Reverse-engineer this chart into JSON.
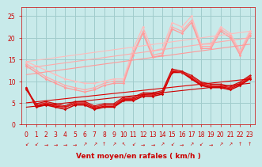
{
  "bg_color": "#c8eaea",
  "grid_color": "#a0cccc",
  "xlabel": "Vent moyen/en rafales ( km/h )",
  "xlabel_color": "#cc0000",
  "xlabel_fontsize": 6.5,
  "tick_color": "#cc0000",
  "tick_fontsize": 5.5,
  "ylim": [
    0,
    27
  ],
  "xlim": [
    -0.5,
    23.5
  ],
  "yticks": [
    0,
    5,
    10,
    15,
    20,
    25
  ],
  "xticks": [
    0,
    1,
    2,
    3,
    4,
    5,
    6,
    7,
    8,
    9,
    10,
    11,
    12,
    13,
    14,
    15,
    16,
    17,
    18,
    19,
    20,
    21,
    22,
    23
  ],
  "lines": [
    {
      "comment": "light pink upper line 1 - nearly straight diagonal",
      "x": [
        0,
        1,
        2,
        3,
        4,
        5,
        6,
        7,
        8,
        9,
        10,
        11,
        12,
        13,
        14,
        15,
        16,
        17,
        18,
        19,
        20,
        21,
        22,
        23
      ],
      "y": [
        14.5,
        13.5,
        12.5,
        11.5,
        10.5,
        10.0,
        9.5,
        9.5,
        10.0,
        10.5,
        10.5,
        17.5,
        22.5,
        17.0,
        17.5,
        23.5,
        22.5,
        25.0,
        18.5,
        18.5,
        22.5,
        21.0,
        17.0,
        21.5
      ],
      "color": "#ffbbbb",
      "lw": 0.9,
      "marker": "D",
      "ms": 1.8,
      "alpha": 1.0
    },
    {
      "comment": "light pink upper line 2",
      "x": [
        0,
        1,
        2,
        3,
        4,
        5,
        6,
        7,
        8,
        9,
        10,
        11,
        12,
        13,
        14,
        15,
        16,
        17,
        18,
        19,
        20,
        21,
        22,
        23
      ],
      "y": [
        14.0,
        12.5,
        11.0,
        10.0,
        9.0,
        8.5,
        8.0,
        8.5,
        9.5,
        10.0,
        10.0,
        16.5,
        21.5,
        16.0,
        16.5,
        22.5,
        21.5,
        24.0,
        18.0,
        18.0,
        22.0,
        20.5,
        16.5,
        21.0
      ],
      "color": "#ffaaaa",
      "lw": 0.9,
      "marker": "D",
      "ms": 1.8,
      "alpha": 1.0
    },
    {
      "comment": "light pink upper line 3 - more diagonal",
      "x": [
        0,
        1,
        2,
        3,
        4,
        5,
        6,
        7,
        8,
        9,
        10,
        11,
        12,
        13,
        14,
        15,
        16,
        17,
        18,
        19,
        20,
        21,
        22,
        23
      ],
      "y": [
        13.5,
        12.0,
        10.5,
        9.5,
        8.5,
        8.0,
        7.5,
        8.0,
        9.0,
        9.5,
        9.5,
        16.0,
        21.0,
        15.5,
        16.0,
        22.0,
        21.0,
        23.5,
        17.5,
        17.5,
        21.5,
        20.0,
        16.0,
        20.5
      ],
      "color": "#ff9999",
      "lw": 0.9,
      "marker": "D",
      "ms": 1.8,
      "alpha": 1.0
    },
    {
      "comment": "straight diagonal upper line - top",
      "x": [
        0,
        23
      ],
      "y": [
        14.5,
        21.5
      ],
      "color": "#ffbbbb",
      "lw": 0.8,
      "marker": null,
      "ms": 0,
      "alpha": 1.0
    },
    {
      "comment": "straight diagonal upper line - mid",
      "x": [
        0,
        23
      ],
      "y": [
        13.0,
        20.0
      ],
      "color": "#ffaaaa",
      "lw": 0.8,
      "marker": null,
      "ms": 0,
      "alpha": 1.0
    },
    {
      "comment": "straight diagonal upper line - lower",
      "x": [
        0,
        23
      ],
      "y": [
        11.5,
        18.5
      ],
      "color": "#ff9999",
      "lw": 0.8,
      "marker": null,
      "ms": 0,
      "alpha": 1.0
    },
    {
      "comment": "dark red bottom cluster - main",
      "x": [
        0,
        1,
        2,
        3,
        4,
        5,
        6,
        7,
        8,
        9,
        10,
        11,
        12,
        13,
        14,
        15,
        16,
        17,
        18,
        19,
        20,
        21,
        22,
        23
      ],
      "y": [
        8.5,
        4.0,
        4.5,
        4.0,
        3.5,
        4.5,
        4.5,
        3.5,
        4.0,
        4.0,
        5.5,
        5.5,
        6.5,
        6.5,
        7.0,
        12.0,
        12.0,
        10.5,
        9.0,
        8.5,
        8.5,
        8.0,
        9.0,
        10.5
      ],
      "color": "#cc0000",
      "lw": 1.1,
      "marker": "D",
      "ms": 1.8,
      "alpha": 1.0
    },
    {
      "comment": "dark red bottom cluster line 2",
      "x": [
        0,
        1,
        2,
        3,
        4,
        5,
        6,
        7,
        8,
        9,
        10,
        11,
        12,
        13,
        14,
        15,
        16,
        17,
        18,
        19,
        20,
        21,
        22,
        23
      ],
      "y": [
        8.5,
        4.2,
        4.8,
        4.2,
        4.0,
        4.8,
        4.8,
        3.8,
        4.2,
        4.2,
        5.8,
        5.8,
        6.8,
        6.8,
        7.3,
        12.2,
        12.2,
        10.7,
        9.2,
        8.7,
        8.7,
        8.3,
        9.3,
        10.7
      ],
      "color": "#dd0000",
      "lw": 1.0,
      "marker": "D",
      "ms": 1.6,
      "alpha": 1.0
    },
    {
      "comment": "dark red bottom cluster line 3",
      "x": [
        0,
        1,
        2,
        3,
        4,
        5,
        6,
        7,
        8,
        9,
        10,
        11,
        12,
        13,
        14,
        15,
        16,
        17,
        18,
        19,
        20,
        21,
        22,
        23
      ],
      "y": [
        8.0,
        4.5,
        5.0,
        4.5,
        4.0,
        5.0,
        5.0,
        4.0,
        4.5,
        4.5,
        6.0,
        6.0,
        7.0,
        7.0,
        7.5,
        12.5,
        12.0,
        11.0,
        9.5,
        9.0,
        9.0,
        8.5,
        9.5,
        11.0
      ],
      "color": "#dd2222",
      "lw": 1.0,
      "marker": "D",
      "ms": 1.6,
      "alpha": 1.0
    },
    {
      "comment": "dark red bottom cluster line 4",
      "x": [
        0,
        1,
        2,
        3,
        4,
        5,
        6,
        7,
        8,
        9,
        10,
        11,
        12,
        13,
        14,
        15,
        16,
        17,
        18,
        19,
        20,
        21,
        22,
        23
      ],
      "y": [
        8.0,
        4.8,
        5.3,
        4.8,
        4.3,
        5.3,
        5.3,
        4.3,
        4.8,
        4.8,
        6.3,
        6.3,
        7.3,
        7.3,
        7.8,
        12.8,
        12.3,
        11.3,
        9.8,
        9.3,
        9.3,
        8.8,
        9.8,
        11.3
      ],
      "color": "#cc1111",
      "lw": 0.9,
      "marker": "D",
      "ms": 1.5,
      "alpha": 1.0
    },
    {
      "comment": "straight diagonal lower line 1",
      "x": [
        0,
        23
      ],
      "y": [
        5.0,
        10.5
      ],
      "color": "#dd0000",
      "lw": 0.8,
      "marker": null,
      "ms": 0,
      "alpha": 1.0
    },
    {
      "comment": "straight diagonal lower line 2",
      "x": [
        0,
        23
      ],
      "y": [
        4.0,
        9.5
      ],
      "color": "#cc0000",
      "lw": 0.8,
      "marker": null,
      "ms": 0,
      "alpha": 1.0
    }
  ],
  "wind_symbols": [
    "↙",
    "↙",
    "→",
    "→",
    "→",
    "→",
    "↗",
    "↗",
    "↑",
    "↗",
    "↖",
    "↙",
    "→",
    "→",
    "↗",
    "↙",
    "→",
    "↗",
    "↙",
    "→",
    "↗",
    "↗",
    "↑",
    "↑"
  ],
  "symbol_color": "#cc0000",
  "symbol_fontsize": 4.5
}
